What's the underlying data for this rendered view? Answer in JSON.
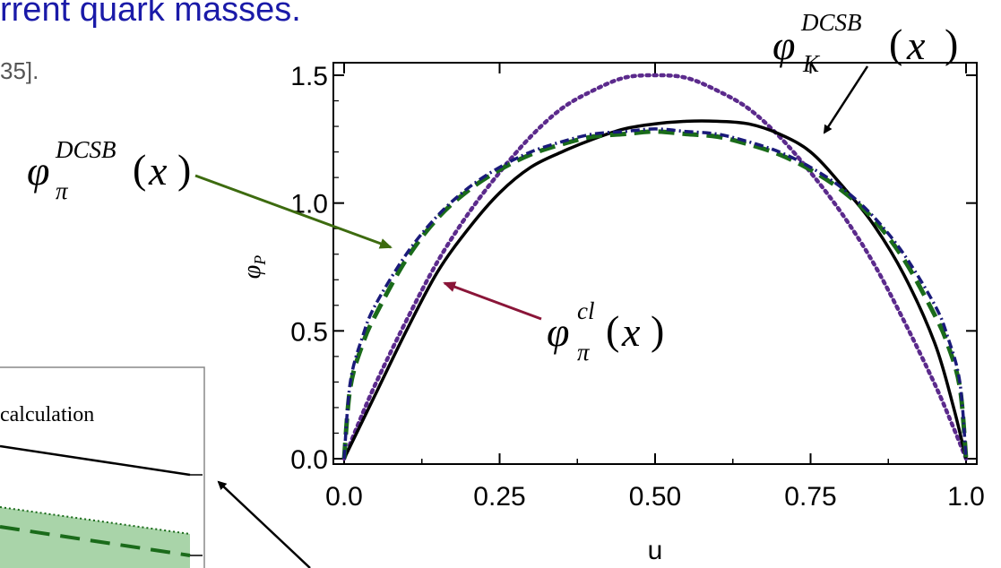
{
  "slide": {
    "title": "rrent quark masses.",
    "reference": "35]."
  },
  "annotations": {
    "kaon": {
      "symbol": "φ",
      "sub": "K",
      "sup": "DCSB",
      "arg": "x"
    },
    "pion_dcsb": {
      "symbol": "φ",
      "sub": "π",
      "sup": "DCSB",
      "arg": "x"
    },
    "pion_cl": {
      "symbol": "φ",
      "sub": "π",
      "sup": "cl",
      "arg": "x"
    }
  },
  "inset": {
    "label": "calculation"
  },
  "colors": {
    "kaon": "#000000",
    "asymptotic": "#5b2a8c",
    "pion_dcsb": "#1a6b1a",
    "pion_cl": "#1a1a7a",
    "arrow_green": "#3d6b0f",
    "arrow_red": "#8a1538",
    "arrow_black": "#000000",
    "inset_band": "#a9d4a9"
  },
  "chart_data": {
    "type": "line",
    "title": "",
    "xlabel": "u",
    "ylabel": "φ_P",
    "xlim": [
      0.0,
      1.0
    ],
    "ylim": [
      0.0,
      1.5
    ],
    "xticks": [
      "0.0",
      "0.25",
      "0.50",
      "0.75",
      "1.0"
    ],
    "yticks": [
      "0.0",
      "0.5",
      "1.0",
      "1.5"
    ],
    "grid": false,
    "legend": "none",
    "series": [
      {
        "key": "asymptotic",
        "style": "dotted",
        "x": [
          0.0,
          0.02,
          0.05,
          0.1,
          0.15,
          0.2,
          0.25,
          0.3,
          0.35,
          0.4,
          0.45,
          0.5,
          0.55,
          0.6,
          0.65,
          0.7,
          0.75,
          0.8,
          0.85,
          0.9,
          0.95,
          0.98,
          1.0
        ],
        "y": [
          0.0,
          0.12,
          0.29,
          0.54,
          0.77,
          0.96,
          1.12,
          1.26,
          1.37,
          1.44,
          1.49,
          1.5,
          1.49,
          1.44,
          1.37,
          1.26,
          1.12,
          0.96,
          0.77,
          0.54,
          0.29,
          0.12,
          0.0
        ]
      },
      {
        "key": "kaon",
        "style": "solid",
        "x": [
          0.0,
          0.02,
          0.05,
          0.1,
          0.15,
          0.2,
          0.25,
          0.3,
          0.35,
          0.4,
          0.45,
          0.5,
          0.55,
          0.6,
          0.65,
          0.7,
          0.75,
          0.8,
          0.85,
          0.9,
          0.95,
          0.98,
          1.0
        ],
        "y": [
          0.0,
          0.1,
          0.25,
          0.5,
          0.73,
          0.9,
          1.04,
          1.14,
          1.2,
          1.25,
          1.29,
          1.31,
          1.32,
          1.32,
          1.31,
          1.27,
          1.2,
          1.07,
          0.92,
          0.72,
          0.45,
          0.2,
          0.0
        ]
      },
      {
        "key": "pion_dcsb",
        "style": "dashed",
        "x": [
          0.0,
          0.01,
          0.03,
          0.05,
          0.1,
          0.15,
          0.2,
          0.25,
          0.3,
          0.35,
          0.4,
          0.45,
          0.5,
          0.55,
          0.6,
          0.65,
          0.7,
          0.75,
          0.8,
          0.85,
          0.9,
          0.95,
          0.97,
          0.99,
          1.0
        ],
        "y": [
          0.0,
          0.28,
          0.45,
          0.56,
          0.78,
          0.94,
          1.05,
          1.13,
          1.19,
          1.23,
          1.26,
          1.27,
          1.28,
          1.27,
          1.26,
          1.23,
          1.19,
          1.13,
          1.05,
          0.94,
          0.78,
          0.56,
          0.45,
          0.28,
          0.0
        ]
      },
      {
        "key": "pion_cl",
        "style": "dashdot",
        "x": [
          0.0,
          0.01,
          0.03,
          0.05,
          0.1,
          0.15,
          0.2,
          0.25,
          0.3,
          0.35,
          0.4,
          0.45,
          0.5,
          0.55,
          0.6,
          0.65,
          0.7,
          0.75,
          0.8,
          0.85,
          0.9,
          0.95,
          0.97,
          0.99,
          1.0
        ],
        "y": [
          0.0,
          0.3,
          0.48,
          0.6,
          0.8,
          0.95,
          1.06,
          1.14,
          1.2,
          1.24,
          1.27,
          1.28,
          1.29,
          1.28,
          1.27,
          1.24,
          1.2,
          1.14,
          1.06,
          0.95,
          0.8,
          0.6,
          0.48,
          0.3,
          0.0
        ]
      }
    ]
  }
}
